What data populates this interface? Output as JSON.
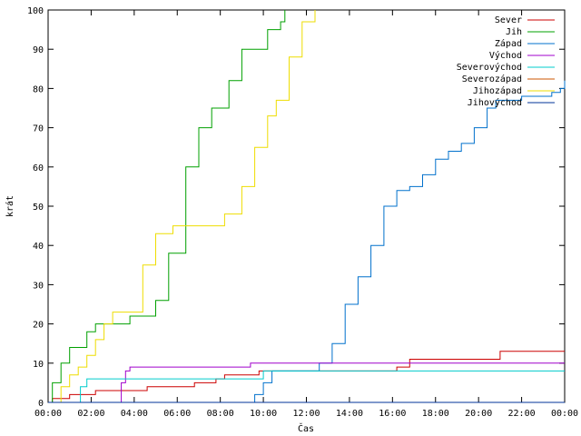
{
  "chart_data": {
    "type": "line",
    "title": "",
    "xlabel": "Čas",
    "ylabel": "krát",
    "xlim": [
      0,
      24
    ],
    "ylim": [
      0,
      100
    ],
    "grid": false,
    "legend_position": "top-right",
    "x_tick_labels": [
      "00:00",
      "02:00",
      "04:00",
      "06:00",
      "08:00",
      "10:00",
      "12:00",
      "14:00",
      "16:00",
      "18:00",
      "20:00",
      "22:00",
      "00:00"
    ],
    "y_ticks": [
      0,
      10,
      20,
      30,
      40,
      50,
      60,
      70,
      80,
      90,
      100
    ],
    "series": [
      {
        "name": "Sever",
        "color": "#cc0000",
        "x": [
          0,
          0.2,
          0.6,
          1.0,
          1.4,
          2.2,
          4.6,
          6.0,
          6.8,
          7.8,
          8.2,
          9.2,
          9.8,
          10.6,
          16.2,
          16.8,
          21.0,
          24.0
        ],
        "y": [
          0,
          1,
          1,
          2,
          2,
          3,
          4,
          4,
          5,
          6,
          7,
          7,
          8,
          8,
          9,
          11,
          13,
          13
        ]
      },
      {
        "name": "Jih",
        "color": "#00a000",
        "x": [
          0,
          0.2,
          0.6,
          1.0,
          1.4,
          1.8,
          2.2,
          2.6,
          3.0,
          3.8,
          4.4,
          5.0,
          5.6,
          6.4,
          7.0,
          7.6,
          8.4,
          9.0,
          9.6,
          10.2,
          10.8,
          11.0
        ],
        "y": [
          0,
          5,
          10,
          14,
          14,
          18,
          20,
          20,
          20,
          22,
          22,
          26,
          38,
          60,
          70,
          75,
          82,
          90,
          90,
          95,
          97,
          100
        ]
      },
      {
        "name": "Západ",
        "color": "#0070cc",
        "x": [
          9.4,
          9.6,
          10.0,
          10.4,
          11.0,
          12.0,
          12.6,
          13.2,
          13.8,
          14.4,
          15.0,
          15.6,
          16.2,
          16.8,
          17.4,
          18.0,
          18.6,
          19.2,
          19.8,
          20.4,
          20.8,
          21.4,
          22.0,
          22.6,
          23.4,
          23.8,
          24.0
        ],
        "y": [
          0,
          2,
          5,
          8,
          8,
          8,
          10,
          15,
          25,
          32,
          40,
          50,
          54,
          55,
          58,
          62,
          64,
          66,
          70,
          75,
          77,
          77,
          78,
          78,
          79,
          80,
          82
        ]
      },
      {
        "name": "Východ",
        "color": "#a000cc",
        "x": [
          3.3,
          3.4,
          3.6,
          3.8,
          7.0,
          8.0,
          8.6,
          9.4,
          10.0,
          24.0
        ],
        "y": [
          0,
          5,
          8,
          9,
          9,
          9,
          9,
          10,
          10,
          10
        ]
      },
      {
        "name": "Severovýchod",
        "color": "#00cccc",
        "x": [
          1.4,
          1.5,
          1.8,
          3.0,
          8.0,
          9.4,
          10.0,
          16.0,
          16.8,
          24.0
        ],
        "y": [
          0,
          4,
          6,
          6,
          6,
          6,
          8,
          8,
          8,
          8
        ]
      },
      {
        "name": "Severozápad",
        "color": "#cc5500",
        "x": [
          0,
          24
        ],
        "y": [
          0,
          0
        ]
      },
      {
        "name": "Jihozápad",
        "color": "#eedd00",
        "x": [
          0.2,
          0.6,
          1.0,
          1.4,
          1.8,
          2.2,
          2.6,
          3.0,
          3.6,
          4.4,
          5.0,
          5.8,
          6.6,
          7.4,
          8.2,
          9.0,
          9.6,
          10.2,
          10.6,
          11.2,
          11.8,
          12.4
        ],
        "y": [
          0,
          4,
          7,
          9,
          12,
          16,
          20,
          23,
          23,
          35,
          43,
          45,
          45,
          45,
          48,
          55,
          65,
          73,
          77,
          88,
          97,
          100
        ]
      },
      {
        "name": "Jihovýchod",
        "color": "#003399",
        "x": [
          0,
          24
        ],
        "y": [
          0,
          0
        ]
      }
    ]
  }
}
